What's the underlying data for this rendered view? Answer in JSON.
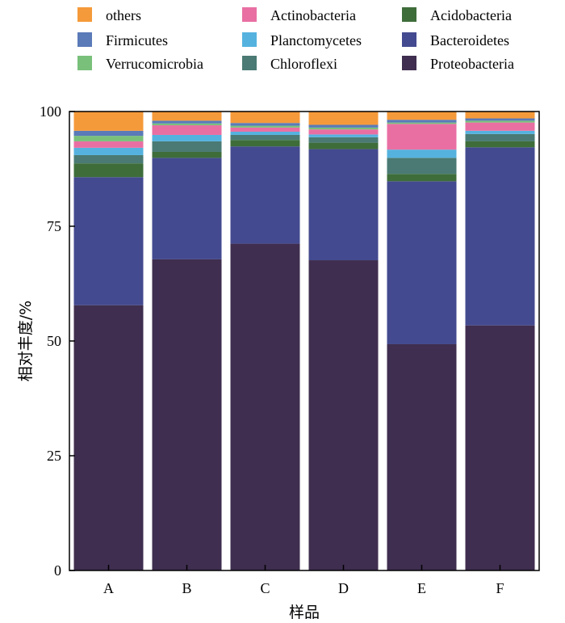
{
  "chart_data": {
    "type": "bar",
    "stacked": true,
    "xlabel": "样品",
    "ylabel": "相对丰度/%",
    "ylim": [
      0,
      100
    ],
    "yticks": [
      0,
      25,
      50,
      75,
      100
    ],
    "categories": [
      "A",
      "B",
      "C",
      "D",
      "E",
      "F"
    ],
    "legend_position": "top",
    "series": [
      {
        "name": "Proteobacteria",
        "color": "#3f2e4f",
        "values": [
          57.8,
          67.8,
          71.2,
          67.6,
          49.3,
          53.4
        ]
      },
      {
        "name": "Bacteroidetes",
        "color": "#434a8f",
        "values": [
          27.9,
          22.1,
          21.2,
          24.2,
          35.5,
          38.8
        ]
      },
      {
        "name": "Acidobacteria",
        "color": "#3e6d3a",
        "values": [
          3.0,
          1.3,
          1.4,
          1.4,
          1.6,
          1.3
        ]
      },
      {
        "name": "Chloroflexi",
        "color": "#4a7a73",
        "values": [
          1.8,
          2.3,
          1.1,
          1.2,
          3.5,
          1.6
        ]
      },
      {
        "name": "Planctomycetes",
        "color": "#55b2df",
        "values": [
          1.6,
          1.4,
          0.7,
          0.6,
          1.8,
          0.7
        ]
      },
      {
        "name": "Actinobacteria",
        "color": "#e96fa3",
        "values": [
          1.4,
          2.1,
          0.9,
          1.1,
          5.6,
          1.8
        ]
      },
      {
        "name": "Verrucomicrobia",
        "color": "#79c07b",
        "values": [
          1.2,
          0.4,
          0.4,
          0.4,
          0.3,
          0.4
        ]
      },
      {
        "name": "Firmicutes",
        "color": "#5a7ab8",
        "values": [
          1.1,
          0.6,
          0.6,
          0.6,
          0.6,
          0.5
        ]
      },
      {
        "name": "others",
        "color": "#f59a3a",
        "values": [
          4.2,
          2.0,
          2.5,
          2.9,
          1.8,
          1.5
        ]
      }
    ]
  },
  "legend": {
    "columns": [
      [
        "others",
        "Firmicutes",
        "Verrucomicrobia"
      ],
      [
        "Actinobacteria",
        "Planctomycetes",
        "Chloroflexi"
      ],
      [
        "Acidobacteria",
        "Bacteroidetes",
        "Proteobacteria"
      ]
    ]
  }
}
